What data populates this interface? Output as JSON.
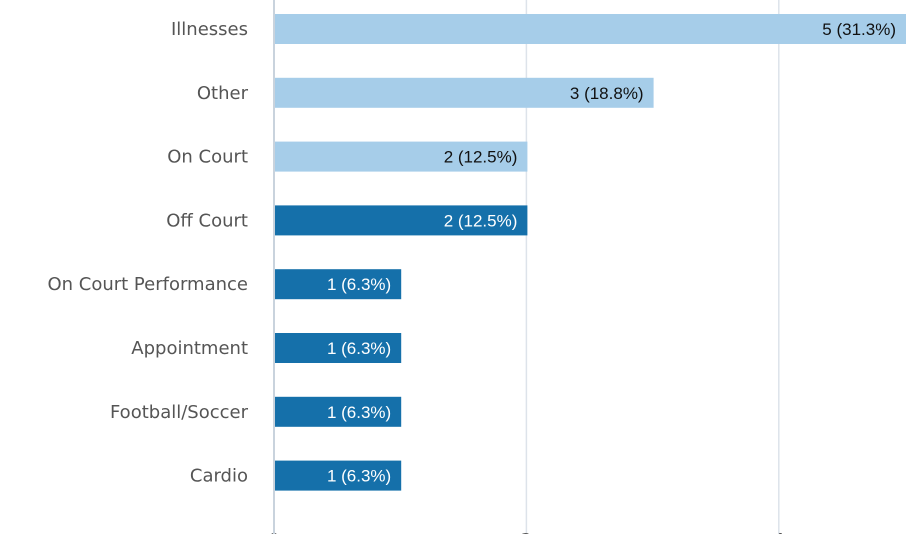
{
  "chart_data": {
    "type": "bar",
    "orientation": "horizontal",
    "categories": [
      "Illnesses",
      "Other",
      "On Court",
      "Off Court",
      "On Court Performance",
      "Appointment",
      "Football/Soccer",
      "Cardio"
    ],
    "values": [
      5,
      3,
      2,
      2,
      1,
      1,
      1,
      1
    ],
    "data_labels": [
      "5 (31.3%)",
      "3 (18.8%)",
      "2 (12.5%)",
      "2 (12.5%)",
      "1 (6.3%)",
      "1 (6.3%)",
      "1 (6.3%)",
      "1 (6.3%)"
    ],
    "bar_colors": [
      "#a6cde9",
      "#a6cde9",
      "#a6cde9",
      "#1570aa",
      "#1570aa",
      "#1570aa",
      "#1570aa",
      "#1570aa"
    ],
    "label_colors": [
      "#111111",
      "#111111",
      "#111111",
      "#ffffff",
      "#ffffff",
      "#ffffff",
      "#ffffff",
      "#ffffff"
    ],
    "x_ticks": [
      0,
      2,
      4
    ],
    "xlim": [
      0,
      5
    ],
    "grid": "vertical",
    "title": "",
    "xlabel": "",
    "ylabel": ""
  },
  "colors": {
    "gridline": "#dde3ea",
    "axis": "#c9d3dd"
  }
}
